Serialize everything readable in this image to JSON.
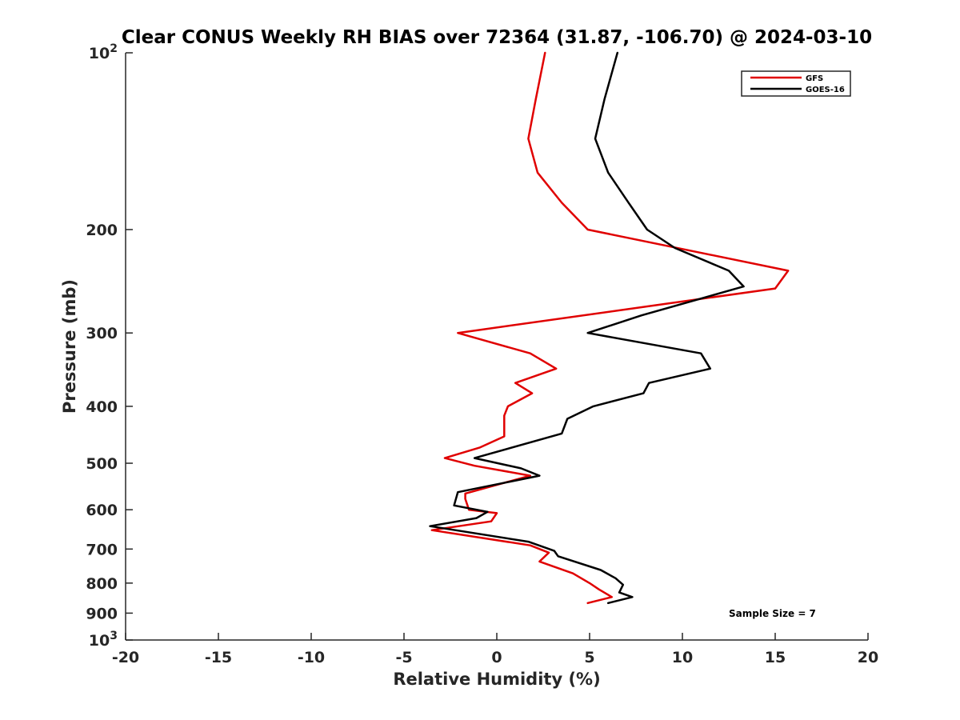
{
  "chart_data": {
    "type": "line",
    "title": "Clear CONUS Weekly RH BIAS over 72364 (31.87, -106.70) @ 2024-03-10",
    "xlabel": "Relative Humidity (%)",
    "ylabel": "Pressure (mb)",
    "xlim": [
      -20,
      20
    ],
    "ylim": [
      100,
      1000
    ],
    "y_scale": "log",
    "y_reversed": true,
    "x_ticks": [
      "-20",
      "-15",
      "-10",
      "-5",
      "0",
      "5",
      "10",
      "15",
      "20"
    ],
    "y_ticks": [
      {
        "value": 100,
        "base": "10",
        "exp": "2"
      },
      {
        "value": 200,
        "base": "200",
        "exp": ""
      },
      {
        "value": 300,
        "base": "300",
        "exp": ""
      },
      {
        "value": 400,
        "base": "400",
        "exp": ""
      },
      {
        "value": 500,
        "base": "500",
        "exp": ""
      },
      {
        "value": 600,
        "base": "600",
        "exp": ""
      },
      {
        "value": 700,
        "base": "700",
        "exp": ""
      },
      {
        "value": 800,
        "base": "800",
        "exp": ""
      },
      {
        "value": 900,
        "base": "900",
        "exp": ""
      },
      {
        "value": 1000,
        "base": "10",
        "exp": "3"
      }
    ],
    "grid": false,
    "legend_position": "top-right",
    "annotation": "Sample Size = 7",
    "series": [
      {
        "name": "GFS",
        "color": "#e00000",
        "points": [
          [
            2.6,
            100
          ],
          [
            2.1,
            120
          ],
          [
            1.7,
            140
          ],
          [
            2.2,
            160
          ],
          [
            3.5,
            180
          ],
          [
            4.9,
            200
          ],
          [
            15.7,
            235
          ],
          [
            15.0,
            252
          ],
          [
            -2.1,
            300
          ],
          [
            1.8,
            325
          ],
          [
            3.2,
            345
          ],
          [
            1.0,
            365
          ],
          [
            1.9,
            380
          ],
          [
            0.6,
            400
          ],
          [
            0.4,
            415
          ],
          [
            0.4,
            450
          ],
          [
            -0.9,
            470
          ],
          [
            -2.8,
            490
          ],
          [
            -1.2,
            505
          ],
          [
            1.8,
            525
          ],
          [
            -1.7,
            563
          ],
          [
            -1.7,
            575
          ],
          [
            -1.5,
            600
          ],
          [
            0.0,
            608
          ],
          [
            -0.3,
            628
          ],
          [
            -3.5,
            650
          ],
          [
            1.8,
            690
          ],
          [
            2.8,
            710
          ],
          [
            2.3,
            735
          ],
          [
            4.1,
            770
          ],
          [
            5.0,
            800
          ],
          [
            5.5,
            820
          ],
          [
            6.2,
            845
          ],
          [
            4.9,
            865
          ]
        ]
      },
      {
        "name": "GOES-16",
        "color": "#000000",
        "points": [
          [
            6.5,
            100
          ],
          [
            5.8,
            120
          ],
          [
            5.3,
            140
          ],
          [
            6.0,
            160
          ],
          [
            7.1,
            180
          ],
          [
            8.1,
            200
          ],
          [
            9.6,
            215
          ],
          [
            12.5,
            235
          ],
          [
            13.3,
            250
          ],
          [
            7.8,
            280
          ],
          [
            4.9,
            300
          ],
          [
            11.0,
            325
          ],
          [
            11.5,
            345
          ],
          [
            8.2,
            365
          ],
          [
            7.9,
            380
          ],
          [
            5.2,
            400
          ],
          [
            3.8,
            420
          ],
          [
            3.5,
            445
          ],
          [
            -1.2,
            490
          ],
          [
            1.3,
            510
          ],
          [
            2.3,
            525
          ],
          [
            -2.1,
            560
          ],
          [
            -2.3,
            590
          ],
          [
            -0.5,
            605
          ],
          [
            -1.1,
            620
          ],
          [
            -3.6,
            640
          ],
          [
            1.7,
            680
          ],
          [
            3.1,
            705
          ],
          [
            3.3,
            720
          ],
          [
            5.6,
            760
          ],
          [
            6.4,
            785
          ],
          [
            6.8,
            805
          ],
          [
            6.6,
            830
          ],
          [
            7.3,
            845
          ],
          [
            6.0,
            865
          ]
        ]
      }
    ]
  }
}
